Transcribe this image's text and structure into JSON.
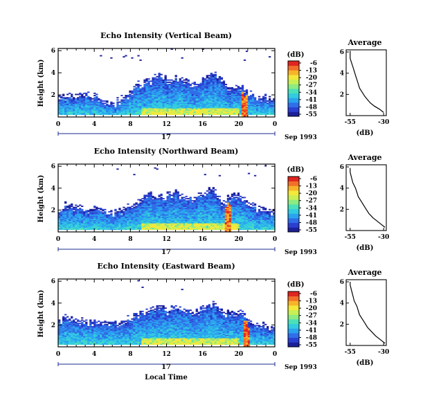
{
  "colors": {
    "colormap": [
      "#1b1f9a",
      "#2a3fd0",
      "#2f6ee8",
      "#2aa3ef",
      "#32cbe0",
      "#4be0b8",
      "#8ceb82",
      "#c9ef55",
      "#f4e83a",
      "#f7b42a",
      "#f2702a",
      "#e0261f"
    ]
  },
  "chart_data": [
    {
      "type": "heatmap",
      "title": "Echo Intensity (Vertical Beam)",
      "ylabel": "Height (km)",
      "xlabel": "",
      "x_ticks": [
        "0",
        "4",
        "8",
        "12",
        "16",
        "20",
        "0"
      ],
      "y_ticks": [
        "2",
        "4",
        "6"
      ],
      "date_label": "17",
      "date_suffix": "Sep 1993",
      "xlim": [
        0,
        24
      ],
      "ylim": [
        0,
        6.2
      ],
      "colorbar": {
        "label": "(dB)",
        "ticks": [
          "-6",
          "-13",
          "-20",
          "-27",
          "-34",
          "-41",
          "-48",
          "-55"
        ]
      },
      "features": {
        "low_layer_top_km": [
          1.8,
          1.5,
          1.6,
          1.7,
          1.8,
          1.3,
          1.1,
          1.4,
          2.2,
          2.8,
          3.1,
          3.6,
          3.0,
          3.4,
          2.9,
          2.6,
          3.3,
          3.8,
          3.0,
          2.2,
          2.6,
          2.0,
          1.6,
          1.4
        ],
        "hot_time_h": 20.6
      },
      "average": {
        "title": "Average",
        "xlabel": "(dB)",
        "x_ticks": [
          "-55",
          "-30"
        ],
        "y_ticks": [
          "2",
          "4",
          "6"
        ],
        "profile": [
          [
            -30,
            0.3
          ],
          [
            -33,
            0.6
          ],
          [
            -37,
            0.9
          ],
          [
            -40,
            1.2
          ],
          [
            -42,
            1.5
          ],
          [
            -44,
            1.8
          ],
          [
            -46,
            2.2
          ],
          [
            -48,
            2.6
          ],
          [
            -49,
            3.0
          ],
          [
            -50,
            3.4
          ],
          [
            -51,
            3.8
          ],
          [
            -52,
            4.2
          ],
          [
            -53,
            4.6
          ],
          [
            -54,
            5.0
          ],
          [
            -55,
            5.4
          ],
          [
            -55,
            5.8
          ],
          [
            -55,
            6.1
          ]
        ]
      }
    },
    {
      "type": "heatmap",
      "title": "Echo Intensity (Northward Beam)",
      "ylabel": "Height (km)",
      "xlabel": "",
      "x_ticks": [
        "0",
        "4",
        "8",
        "12",
        "16",
        "20",
        "0"
      ],
      "y_ticks": [
        "2",
        "4",
        "6"
      ],
      "date_label": "17",
      "date_suffix": "Sep 1993",
      "xlim": [
        0,
        24
      ],
      "ylim": [
        0,
        6.2
      ],
      "colorbar": {
        "label": "(dB)",
        "ticks": [
          "-6",
          "-13",
          "-20",
          "-27",
          "-34",
          "-41",
          "-48",
          "-55"
        ]
      },
      "features": {
        "low_layer_top_km": [
          2.0,
          2.2,
          2.0,
          1.8,
          1.9,
          1.7,
          1.6,
          1.9,
          2.3,
          2.7,
          3.4,
          3.0,
          3.2,
          3.5,
          2.8,
          3.0,
          3.4,
          3.6,
          2.6,
          2.9,
          3.1,
          2.4,
          2.0,
          1.6
        ],
        "hot_time_h": 18.8
      },
      "average": {
        "title": "Average",
        "xlabel": "(dB)",
        "x_ticks": [
          "-55",
          "-30"
        ],
        "y_ticks": [
          "2",
          "4",
          "6"
        ],
        "profile": [
          [
            -29,
            0.3
          ],
          [
            -32,
            0.6
          ],
          [
            -35,
            0.9
          ],
          [
            -38,
            1.2
          ],
          [
            -41,
            1.6
          ],
          [
            -43,
            2.0
          ],
          [
            -45,
            2.4
          ],
          [
            -47,
            2.8
          ],
          [
            -49,
            3.2
          ],
          [
            -50,
            3.6
          ],
          [
            -51,
            4.0
          ],
          [
            -53,
            4.5
          ],
          [
            -54,
            5.0
          ],
          [
            -55,
            5.5
          ],
          [
            -55,
            5.9
          ]
        ]
      }
    },
    {
      "type": "heatmap",
      "title": "Echo Intensity (Eastward Beam)",
      "ylabel": "Height (km)",
      "xlabel": "Local Time",
      "x_ticks": [
        "0",
        "4",
        "8",
        "12",
        "16",
        "20",
        "0"
      ],
      "y_ticks": [
        "2",
        "4",
        "6"
      ],
      "date_label": "17",
      "date_suffix": "Sep 1993",
      "xlim": [
        0,
        24
      ],
      "ylim": [
        0,
        6.2
      ],
      "colorbar": {
        "label": "(dB)",
        "ticks": [
          "-6",
          "-13",
          "-20",
          "-27",
          "-34",
          "-41",
          "-48",
          "-55"
        ]
      },
      "features": {
        "low_layer_top_km": [
          2.2,
          2.4,
          2.3,
          2.0,
          2.2,
          2.0,
          1.9,
          2.0,
          2.5,
          3.0,
          3.2,
          3.6,
          3.1,
          3.5,
          3.0,
          2.8,
          3.3,
          3.7,
          3.0,
          2.8,
          2.9,
          2.3,
          1.9,
          1.6
        ],
        "hot_time_h": 20.8
      },
      "average": {
        "title": "Average",
        "xlabel": "(dB)",
        "x_ticks": [
          "-55",
          "-30"
        ],
        "y_ticks": [
          "2",
          "4",
          "6"
        ],
        "profile": [
          [
            -29,
            0.2
          ],
          [
            -32,
            0.5
          ],
          [
            -36,
            0.9
          ],
          [
            -39,
            1.3
          ],
          [
            -42,
            1.7
          ],
          [
            -44,
            2.1
          ],
          [
            -46,
            2.5
          ],
          [
            -48,
            2.9
          ],
          [
            -49,
            3.3
          ],
          [
            -50,
            3.7
          ],
          [
            -52,
            4.2
          ],
          [
            -53,
            4.7
          ],
          [
            -54,
            5.2
          ],
          [
            -55,
            5.7
          ],
          [
            -55,
            6.0
          ]
        ]
      }
    }
  ]
}
